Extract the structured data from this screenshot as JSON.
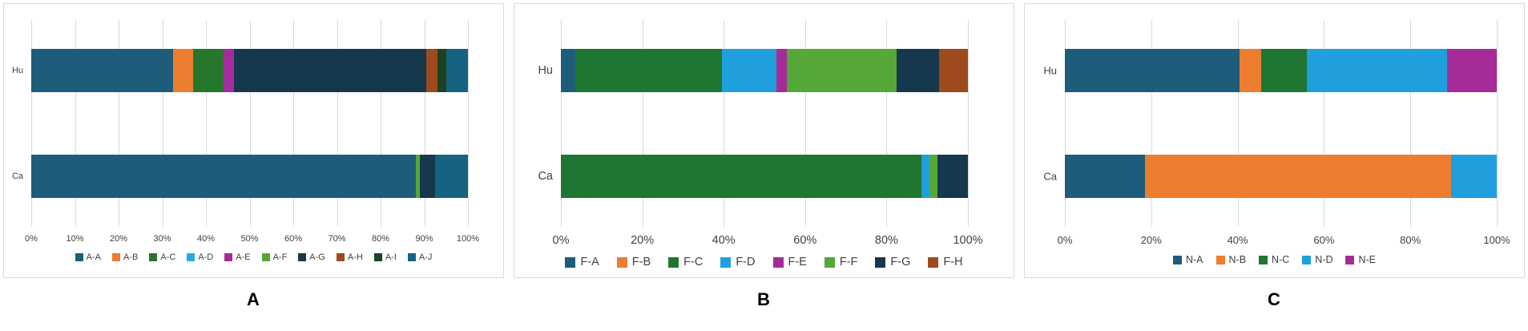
{
  "chart_data": [
    {
      "type": "bar",
      "orientation": "horizontal",
      "stacked": true,
      "title": "A",
      "categories": [
        "Hu",
        "Ca"
      ],
      "xlabel": "",
      "ylabel": "",
      "xlim": [
        0,
        100
      ],
      "grid": true,
      "legend_position": "bottom",
      "tick_labels": [
        "0%",
        "10%",
        "20%",
        "30%",
        "40%",
        "50%",
        "60%",
        "70%",
        "80%",
        "90%",
        "100%"
      ],
      "series": [
        {
          "name": "A-A",
          "color": "#1E5C7B",
          "values": [
            32.5,
            88
          ]
        },
        {
          "name": "A-B",
          "color": "#ED7D31",
          "values": [
            4.5,
            0
          ]
        },
        {
          "name": "A-C",
          "color": "#26772B",
          "values": [
            7,
            0
          ]
        },
        {
          "name": "A-D",
          "color": "#29A9E1",
          "values": [
            0,
            0
          ]
        },
        {
          "name": "A-E",
          "color": "#A62C9E",
          "values": [
            2.5,
            0
          ]
        },
        {
          "name": "A-F",
          "color": "#55A738",
          "values": [
            0,
            1
          ]
        },
        {
          "name": "A-G",
          "color": "#16384E",
          "values": [
            44,
            3.5
          ]
        },
        {
          "name": "A-H",
          "color": "#9E4A1C",
          "values": [
            2.5,
            0
          ]
        },
        {
          "name": "A-I",
          "color": "#1B4221",
          "values": [
            2,
            0
          ]
        },
        {
          "name": "A-J",
          "color": "#156380",
          "values": [
            5,
            7.5
          ]
        }
      ]
    },
    {
      "type": "bar",
      "orientation": "horizontal",
      "stacked": true,
      "title": "B",
      "categories": [
        "Hu",
        "Ca"
      ],
      "xlabel": "",
      "ylabel": "",
      "xlim": [
        0,
        100
      ],
      "grid": true,
      "legend_position": "bottom",
      "tick_labels": [
        "0%",
        "20%",
        "40%",
        "60%",
        "80%",
        "100%"
      ],
      "series": [
        {
          "name": "F-A",
          "color": "#1E5C7B",
          "values": [
            3.5,
            0
          ]
        },
        {
          "name": "F-B",
          "color": "#ED7D31",
          "values": [
            0,
            0
          ]
        },
        {
          "name": "F-C",
          "color": "#1F7630",
          "values": [
            36,
            88.5
          ]
        },
        {
          "name": "F-D",
          "color": "#1FA0DC",
          "values": [
            13.5,
            2
          ]
        },
        {
          "name": "F-E",
          "color": "#A52C98",
          "values": [
            2.5,
            0
          ]
        },
        {
          "name": "F-F",
          "color": "#55A738",
          "values": [
            27,
            2
          ]
        },
        {
          "name": "F-G",
          "color": "#16384E",
          "values": [
            10.5,
            7.5
          ]
        },
        {
          "name": "F-H",
          "color": "#9E4A1C",
          "values": [
            7,
            0
          ]
        }
      ]
    },
    {
      "type": "bar",
      "orientation": "horizontal",
      "stacked": true,
      "title": "C",
      "categories": [
        "Hu",
        "Ca"
      ],
      "xlabel": "",
      "ylabel": "",
      "xlim": [
        0,
        100
      ],
      "grid": true,
      "legend_position": "bottom",
      "tick_labels": [
        "0%",
        "20%",
        "40%",
        "60%",
        "80%",
        "100%"
      ],
      "series": [
        {
          "name": "N-A",
          "color": "#1E5C7B",
          "values": [
            40.5,
            18.5
          ]
        },
        {
          "name": "N-B",
          "color": "#ED7D31",
          "values": [
            5,
            71
          ]
        },
        {
          "name": "N-C",
          "color": "#1F7630",
          "values": [
            10.5,
            0
          ]
        },
        {
          "name": "N-D",
          "color": "#1FA0DC",
          "values": [
            32.5,
            10.5
          ]
        },
        {
          "name": "N-E",
          "color": "#A52C98",
          "values": [
            11.5,
            0
          ]
        }
      ]
    }
  ]
}
